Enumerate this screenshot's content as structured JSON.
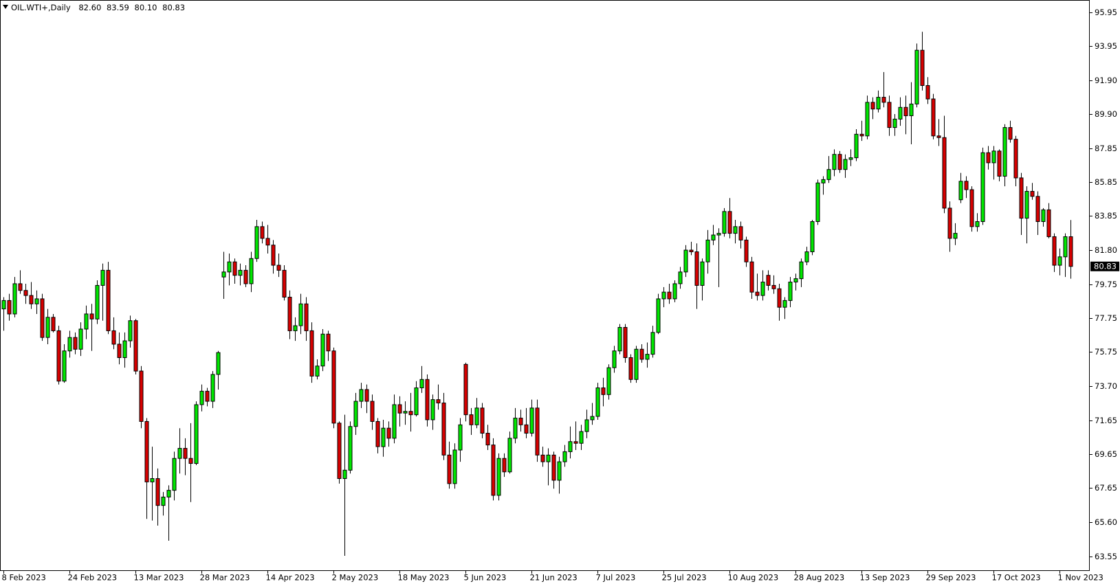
{
  "chart_data": {
    "type": "candlestick",
    "title": "OIL.WTI+,Daily",
    "header_values": [
      "82.60",
      "83.59",
      "80.10",
      "80.83"
    ],
    "last_price_label": "80.83",
    "up_color": "#00e600",
    "down_color": "#d60000",
    "grid": false,
    "ylim": [
      62.7,
      96.65
    ],
    "yticks": [
      95.95,
      93.95,
      {
        "value": 91.9,
        "label": "91.90"
      },
      {
        "value": 89.9,
        "label": "89.90"
      },
      87.85,
      85.85,
      83.85,
      {
        "value": 81.8,
        "label": "81.80"
      },
      79.75,
      77.75,
      75.75,
      {
        "value": 73.7,
        "label": "73.70"
      },
      71.65,
      69.65,
      67.65,
      {
        "value": 65.6,
        "label": "65.60"
      },
      63.55
    ],
    "categories": [
      "8 Feb 2023",
      null,
      null,
      null,
      null,
      null,
      null,
      null,
      null,
      null,
      null,
      null,
      "24 Feb 2023",
      null,
      null,
      null,
      null,
      null,
      null,
      null,
      null,
      null,
      null,
      null,
      "13 Mar 2023",
      null,
      null,
      null,
      null,
      null,
      null,
      null,
      null,
      null,
      null,
      null,
      "28 Mar 2023",
      null,
      null,
      null,
      null,
      null,
      null,
      null,
      null,
      null,
      null,
      null,
      "14 Apr 2023",
      null,
      null,
      null,
      null,
      null,
      null,
      null,
      null,
      null,
      null,
      null,
      "2 May 2023",
      null,
      null,
      null,
      null,
      null,
      null,
      null,
      null,
      null,
      null,
      null,
      "18 May 2023",
      null,
      null,
      null,
      null,
      null,
      null,
      null,
      null,
      null,
      null,
      null,
      "5 Jun 2023",
      null,
      null,
      null,
      null,
      null,
      null,
      null,
      null,
      null,
      null,
      null,
      "21 Jun 2023",
      null,
      null,
      null,
      null,
      null,
      null,
      null,
      null,
      null,
      null,
      null,
      "7 Jul 2023",
      null,
      null,
      null,
      null,
      null,
      null,
      null,
      null,
      null,
      null,
      null,
      "25 Jul 2023",
      null,
      null,
      null,
      null,
      null,
      null,
      null,
      null,
      null,
      null,
      null,
      "10 Aug 2023",
      null,
      null,
      null,
      null,
      null,
      null,
      null,
      null,
      null,
      null,
      null,
      "28 Aug 2023",
      null,
      null,
      null,
      null,
      null,
      null,
      null,
      null,
      null,
      null,
      null,
      "13 Sep 2023",
      null,
      null,
      null,
      null,
      null,
      null,
      null,
      null,
      null,
      null,
      null,
      "29 Sep 2023",
      null,
      null,
      null,
      null,
      null,
      null,
      null,
      null,
      null,
      null,
      null,
      "17 Oct 2023",
      null,
      null,
      null,
      null,
      null,
      null,
      null,
      null,
      null,
      null,
      null,
      "1 Nov 2023",
      null,
      null
    ],
    "open": [
      78.3,
      78.8,
      78.0,
      79.8,
      79.4,
      79.1,
      78.6,
      78.9,
      76.6,
      77.8,
      77.0,
      74.0,
      75.8,
      76.6,
      75.9,
      77.1,
      78.0,
      77.7,
      79.7,
      80.6,
      77.0,
      76.2,
      75.4,
      76.4,
      77.6,
      74.6,
      71.6,
      68.0,
      68.2,
      66.6,
      67.1,
      67.5,
      69.4,
      70.0,
      69.4,
      69.1,
      72.6,
      73.4,
      72.8,
      74.4,
      80.2,
      80.5,
      81.1,
      80.3,
      80.6,
      79.8,
      81.3,
      83.2,
      82.5,
      82.1,
      80.9,
      80.6,
      79.0,
      77.0,
      77.3,
      78.6,
      77.0,
      74.3,
      74.9,
      76.8,
      75.8,
      71.5,
      68.2,
      68.7,
      71.3,
      72.8,
      73.5,
      72.8,
      71.6,
      70.1,
      71.2,
      70.6,
      72.6,
      72.1,
      72.2,
      72.0,
      73.6,
      74.1,
      71.7,
      72.9,
      72.7,
      69.6,
      67.9,
      69.9,
      75.0,
      72.0,
      71.4,
      72.4,
      70.9,
      70.2,
      67.2,
      69.4,
      68.6,
      70.6,
      71.8,
      71.4,
      70.9,
      72.4,
      69.6,
      69.2,
      69.6,
      68.1,
      69.2,
      69.8,
      70.4,
      70.3,
      71.0,
      71.7,
      71.9,
      73.6,
      73.2,
      74.8,
      75.8,
      77.2,
      75.4,
      74.1,
      75.9,
      75.3,
      75.6,
      76.9,
      78.9,
      79.3,
      78.9,
      79.8,
      80.5,
      81.8,
      81.7,
      79.7,
      81.1,
      82.4,
      82.7,
      82.8,
      84.1,
      82.8,
      83.2,
      82.4,
      81.1,
      79.3,
      79.1,
      80.3,
      79.7,
      79.5,
      78.4,
      78.8,
      79.9,
      80.1,
      81.1,
      81.7,
      83.5,
      85.8,
      86.0,
      86.6,
      87.5,
      86.6,
      87.2,
      87.3,
      88.7,
      88.6,
      90.6,
      90.2,
      90.9,
      90.6,
      89.1,
      89.6,
      90.3,
      89.8,
      90.5,
      93.7,
      91.6,
      90.8,
      88.6,
      88.5,
      84.3,
      82.5,
      84.8,
      85.9,
      85.4,
      83.2,
      83.5,
      87.6,
      87.0,
      87.7,
      86.2,
      89.1,
      88.4,
      86.1,
      83.7,
      85.3,
      85.0,
      83.5,
      84.2,
      82.6,
      80.9,
      81.4,
      82.6
    ],
    "high": [
      79.0,
      79.2,
      80.2,
      80.6,
      79.8,
      79.9,
      79.4,
      79.2,
      78.3,
      78.0,
      77.3,
      76.2,
      77.0,
      76.9,
      77.5,
      78.5,
      78.6,
      80.0,
      81.0,
      81.1,
      77.8,
      76.9,
      76.9,
      77.9,
      77.7,
      74.9,
      71.8,
      70.1,
      68.8,
      67.4,
      67.8,
      69.8,
      71.2,
      70.6,
      71.5,
      72.8,
      73.8,
      73.6,
      74.6,
      75.8,
      81.7,
      81.6,
      81.3,
      81.0,
      80.9,
      81.7,
      83.6,
      83.5,
      83.3,
      82.4,
      81.6,
      80.9,
      79.4,
      77.8,
      79.2,
      79.0,
      77.5,
      75.3,
      77.1,
      77.0,
      76.0,
      71.6,
      72.0,
      71.6,
      73.3,
      73.9,
      73.8,
      73.2,
      71.8,
      71.7,
      71.6,
      73.2,
      73.1,
      72.8,
      73.3,
      74.0,
      74.9,
      74.4,
      73.2,
      73.8,
      73.3,
      70.4,
      70.3,
      71.8,
      75.1,
      72.4,
      73.0,
      72.7,
      71.4,
      70.6,
      69.7,
      69.7,
      71.0,
      72.4,
      72.3,
      72.4,
      72.9,
      72.9,
      70.1,
      70.0,
      69.8,
      69.5,
      70.2,
      71.3,
      71.6,
      71.4,
      72.3,
      72.7,
      73.9,
      74.2,
      75.0,
      76.1,
      77.4,
      77.4,
      75.6,
      76.1,
      76.2,
      76.3,
      77.3,
      79.2,
      79.6,
      79.8,
      80.0,
      80.8,
      82.1,
      82.3,
      82.2,
      81.3,
      83.0,
      83.3,
      83.1,
      84.3,
      84.9,
      83.6,
      83.5,
      82.6,
      81.4,
      80.4,
      80.6,
      80.6,
      80.3,
      79.8,
      79.0,
      80.2,
      80.4,
      81.3,
      82.0,
      83.6,
      86.0,
      86.2,
      87.4,
      87.8,
      87.7,
      87.5,
      87.8,
      89.0,
      89.5,
      91.0,
      90.9,
      91.3,
      92.4,
      91.0,
      89.9,
      90.9,
      91.0,
      91.8,
      94.1,
      94.8,
      92.1,
      91.1,
      89.6,
      89.8,
      84.7,
      83.4,
      86.4,
      86.2,
      85.6,
      84.0,
      87.9,
      88.0,
      88.0,
      87.8,
      89.3,
      89.5,
      88.6,
      86.4,
      85.6,
      85.8,
      85.3,
      84.3,
      84.6,
      82.8,
      81.9,
      82.8,
      83.59
    ],
    "low": [
      77.0,
      77.6,
      77.8,
      79.2,
      78.6,
      78.3,
      78.0,
      76.4,
      76.2,
      76.9,
      73.8,
      73.9,
      75.4,
      75.6,
      75.5,
      76.5,
      75.8,
      77.4,
      77.6,
      76.8,
      75.9,
      75.0,
      74.8,
      76.0,
      74.4,
      71.2,
      65.8,
      65.7,
      65.4,
      66.0,
      64.5,
      66.9,
      68.5,
      68.4,
      66.8,
      69.0,
      72.2,
      72.5,
      72.4,
      73.5,
      78.9,
      79.7,
      79.8,
      79.7,
      79.6,
      79.3,
      81.1,
      82.2,
      81.6,
      80.4,
      80.2,
      78.8,
      76.5,
      76.4,
      76.8,
      76.4,
      73.9,
      74.1,
      74.6,
      75.2,
      71.2,
      67.9,
      63.6,
      68.5,
      70.8,
      72.4,
      72.1,
      71.1,
      69.7,
      69.5,
      70.1,
      70.3,
      71.3,
      71.4,
      71.0,
      71.9,
      73.3,
      71.3,
      71.1,
      72.3,
      69.3,
      67.6,
      67.6,
      69.2,
      71.6,
      70.8,
      71.2,
      70.6,
      69.9,
      66.9,
      66.9,
      68.3,
      68.5,
      70.3,
      71.0,
      70.6,
      70.7,
      69.2,
      68.9,
      67.8,
      67.6,
      67.3,
      68.9,
      69.4,
      69.9,
      69.9,
      70.6,
      71.4,
      71.7,
      72.5,
      72.9,
      74.5,
      75.6,
      75.1,
      73.9,
      73.9,
      75.1,
      74.8,
      75.4,
      76.8,
      78.4,
      78.6,
      78.7,
      79.5,
      80.2,
      81.5,
      78.3,
      78.8,
      80.4,
      82.1,
      79.6,
      82.6,
      82.5,
      82.2,
      81.9,
      80.8,
      78.9,
      78.8,
      78.8,
      79.4,
      79.2,
      77.6,
      77.7,
      78.4,
      79.4,
      79.6,
      80.9,
      81.5,
      83.3,
      85.1,
      85.8,
      86.2,
      86.4,
      86.1,
      86.8,
      87.1,
      88.3,
      88.4,
      89.6,
      90.0,
      90.3,
      88.6,
      88.6,
      89.2,
      88.7,
      88.1,
      90.3,
      91.3,
      90.5,
      88.4,
      88.0,
      84.0,
      81.7,
      82.1,
      84.6,
      84.9,
      82.9,
      82.9,
      83.3,
      86.6,
      86.0,
      85.9,
      85.6,
      88.2,
      85.6,
      82.7,
      82.2,
      84.8,
      82.7,
      83.2,
      82.5,
      80.5,
      80.3,
      80.2,
      80.1
    ],
    "close": [
      78.8,
      78.0,
      79.8,
      79.4,
      79.1,
      78.6,
      78.9,
      76.6,
      77.8,
      77.0,
      74.0,
      75.8,
      76.6,
      75.9,
      77.1,
      78.0,
      77.7,
      79.7,
      80.6,
      77.0,
      76.2,
      75.4,
      76.4,
      77.6,
      74.6,
      71.6,
      68.0,
      68.2,
      66.6,
      67.1,
      67.5,
      69.4,
      70.0,
      69.4,
      69.1,
      72.6,
      73.4,
      72.8,
      74.4,
      75.7,
      80.5,
      81.1,
      80.3,
      80.6,
      79.8,
      81.3,
      83.2,
      82.5,
      82.1,
      80.9,
      80.6,
      79.0,
      77.0,
      77.3,
      78.6,
      77.0,
      74.3,
      74.9,
      76.8,
      75.8,
      71.5,
      68.2,
      68.7,
      71.3,
      72.8,
      73.5,
      72.8,
      71.6,
      70.1,
      71.2,
      70.6,
      72.6,
      72.1,
      72.2,
      72.0,
      73.6,
      74.1,
      71.7,
      72.9,
      72.7,
      69.6,
      67.9,
      69.9,
      71.4,
      72.0,
      71.4,
      72.4,
      70.9,
      70.2,
      67.2,
      69.4,
      68.6,
      70.6,
      71.8,
      71.4,
      70.9,
      72.4,
      69.6,
      69.2,
      69.6,
      68.1,
      69.2,
      69.8,
      70.4,
      70.3,
      71.0,
      71.7,
      71.9,
      73.6,
      73.2,
      74.8,
      75.8,
      77.2,
      75.4,
      74.1,
      75.9,
      75.3,
      75.6,
      76.9,
      78.9,
      79.3,
      78.9,
      79.8,
      80.5,
      81.8,
      81.7,
      79.7,
      81.1,
      82.4,
      82.7,
      82.8,
      84.1,
      82.8,
      83.2,
      82.4,
      81.1,
      79.3,
      79.1,
      79.9,
      79.7,
      79.5,
      78.4,
      78.8,
      79.9,
      80.1,
      81.1,
      81.7,
      83.5,
      85.8,
      86.0,
      86.6,
      87.5,
      86.6,
      87.2,
      87.3,
      88.7,
      88.6,
      90.6,
      90.2,
      90.9,
      90.6,
      89.1,
      89.6,
      90.3,
      89.8,
      90.5,
      93.7,
      91.6,
      90.8,
      88.6,
      88.5,
      84.3,
      82.5,
      82.8,
      85.9,
      85.4,
      83.2,
      83.5,
      87.6,
      87.0,
      87.7,
      86.2,
      89.1,
      88.4,
      86.1,
      83.7,
      85.3,
      85.0,
      83.5,
      84.2,
      82.6,
      80.9,
      81.4,
      82.6,
      80.83
    ]
  }
}
